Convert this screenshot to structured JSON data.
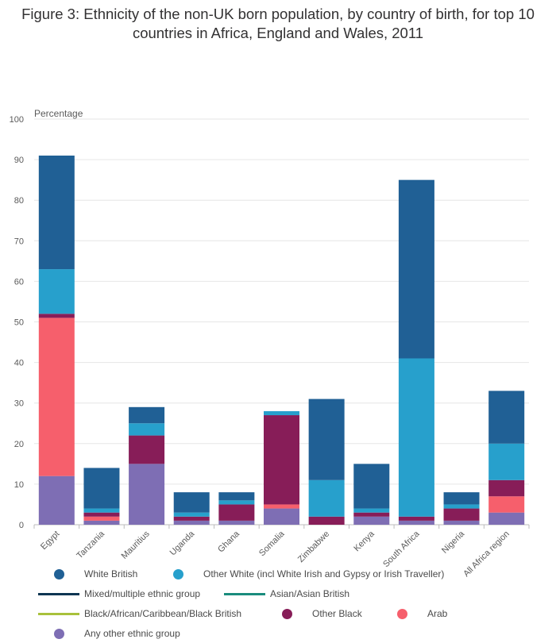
{
  "title": "Figure 3: Ethnicity of the non-UK born population, by country of birth, for top 10 countries in Africa, England and Wales, 2011",
  "chart_data": {
    "type": "bar",
    "stacked": true,
    "ylabel": "Percentage",
    "xlabel": "",
    "ylim": [
      0,
      100
    ],
    "yticks": [
      0,
      10,
      20,
      30,
      40,
      50,
      60,
      70,
      80,
      90,
      100
    ],
    "grid": true,
    "legend_position": "bottom",
    "categories": [
      "Egypt",
      "Tanzania",
      "Mauritius",
      "Uganda",
      "Ghana",
      "Somalia",
      "Zimbabwe",
      "Kenya",
      "South Africa",
      "Nigeria",
      "All Africa region"
    ],
    "series": [
      {
        "name": "Any other ethnic group",
        "color": "#7e6eb4",
        "marker": "dot",
        "values": [
          12,
          1,
          15,
          1,
          1,
          4,
          0,
          2,
          1,
          1,
          3
        ]
      },
      {
        "name": "Arab",
        "color": "#f65f6c",
        "marker": "dot",
        "values": [
          39,
          1,
          0,
          0,
          0,
          1,
          0,
          0,
          0,
          0,
          4
        ]
      },
      {
        "name": "Other Black",
        "color": "#871d58",
        "marker": "dot",
        "values": [
          1,
          1,
          7,
          1,
          4,
          22,
          2,
          1,
          1,
          3,
          4
        ]
      },
      {
        "name": "Black/African/Caribbean/Black British",
        "color": "#a8c13b",
        "marker": "line",
        "values": [
          0,
          0,
          0,
          0,
          0,
          0,
          0,
          0,
          0,
          0,
          0
        ]
      },
      {
        "name": "Asian/Asian British",
        "color": "#1a8c7d",
        "marker": "line",
        "values": [
          0,
          0,
          0,
          0,
          0,
          0,
          0,
          0,
          0,
          0,
          0
        ]
      },
      {
        "name": "Mixed/multiple ethnic group",
        "color": "#0d3552",
        "marker": "line",
        "values": [
          0,
          0,
          0,
          0,
          0,
          0,
          0,
          0,
          0,
          0,
          0
        ]
      },
      {
        "name": "Other White (incl White Irish and Gypsy or Irish Traveller)",
        "color": "#27a0cc",
        "marker": "dot",
        "values": [
          11,
          1,
          3,
          1,
          1,
          1,
          9,
          1,
          39,
          1,
          9
        ]
      },
      {
        "name": "White British",
        "color": "#206095",
        "marker": "dot",
        "values": [
          28,
          10,
          4,
          5,
          2,
          0,
          20,
          11,
          44,
          3,
          13
        ]
      }
    ]
  },
  "legend_order": [
    "White British",
    "Other White (incl White Irish and Gypsy or Irish Traveller)",
    "Mixed/multiple ethnic group",
    "Asian/Asian British",
    "Black/African/Caribbean/Black British",
    "Other Black",
    "Arab",
    "Any other ethnic group"
  ]
}
